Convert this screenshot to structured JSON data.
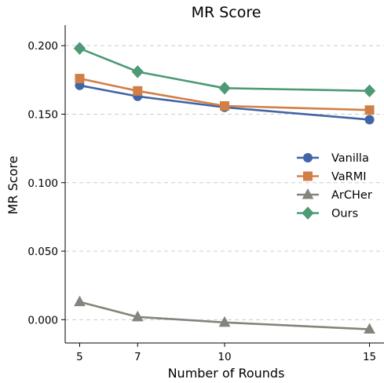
{
  "chart_data": {
    "type": "line",
    "title": "MR Score",
    "xlabel": "Number of Rounds",
    "ylabel": "MR Score",
    "x": [
      5,
      7,
      10,
      15
    ],
    "x_ticks": [
      "5",
      "7",
      "10",
      "15"
    ],
    "xlim": [
      4.5,
      15.5
    ],
    "ylim": [
      -0.017,
      0.215
    ],
    "y_ticks": [
      0.0,
      0.05,
      0.1,
      0.15,
      0.2
    ],
    "y_tick_labels": [
      "0.000",
      "0.050",
      "0.100",
      "0.150",
      "0.200"
    ],
    "grid": "horizontal dashed",
    "legend_position": "right",
    "series": [
      {
        "name": "Vanilla",
        "color": "#4065a6",
        "marker": "circle",
        "values": [
          0.171,
          0.163,
          0.155,
          0.146
        ]
      },
      {
        "name": "VaRMI",
        "color": "#d27f47",
        "marker": "square",
        "values": [
          0.176,
          0.167,
          0.156,
          0.153
        ]
      },
      {
        "name": "ArCHer",
        "color": "#84847b",
        "marker": "triangle",
        "values": [
          0.013,
          0.002,
          -0.002,
          -0.007
        ]
      },
      {
        "name": "Ours",
        "color": "#4d9a74",
        "marker": "diamond",
        "values": [
          0.198,
          0.181,
          0.169,
          0.167
        ]
      }
    ]
  }
}
